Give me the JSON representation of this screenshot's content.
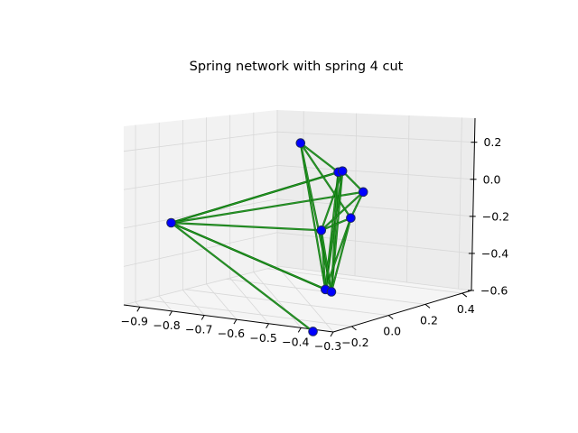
{
  "chart_data": {
    "type": "scatter",
    "projection": "3d",
    "title": "Spring network with spring 4 cut",
    "xlabel": "",
    "ylabel": "",
    "zlabel": "",
    "xlim": [
      -0.95,
      -0.3
    ],
    "ylim": [
      -0.3,
      0.45
    ],
    "zlim": [
      -0.6,
      0.33
    ],
    "xticks": [
      "−0.9",
      "−0.8",
      "−0.7",
      "−0.6",
      "−0.5",
      "−0.4",
      "−0.3"
    ],
    "yticks": [
      "−0.2",
      "0.0",
      "0.2",
      "0.4"
    ],
    "zticks": [
      "−0.6",
      "−0.4",
      "−0.2",
      "0.0",
      "0.2"
    ],
    "grid": true,
    "nodes": [
      {
        "id": "n1",
        "x": -0.86,
        "y": -0.2,
        "z": -0.2
      },
      {
        "id": "n2",
        "x": -0.55,
        "y": 0.3,
        "z": -0.12
      },
      {
        "id": "n3",
        "x": -0.43,
        "y": -0.25,
        "z": 0.3
      },
      {
        "id": "n4",
        "x": -0.37,
        "y": -0.15,
        "z": 0.14
      },
      {
        "id": "n5",
        "x": -0.34,
        "y": -0.18,
        "z": 0.16
      },
      {
        "id": "n6",
        "x": -0.36,
        "y": -0.1,
        "z": -0.1
      },
      {
        "id": "n7",
        "x": -0.48,
        "y": -0.05,
        "z": -0.2
      },
      {
        "id": "n8",
        "x": -0.45,
        "y": -0.08,
        "z": -0.48
      },
      {
        "id": "n9",
        "x": -0.42,
        "y": -0.1,
        "z": -0.48
      },
      {
        "id": "n10",
        "x": -0.42,
        "y": -0.2,
        "z": -0.65
      }
    ],
    "edges": [
      [
        "n1",
        "n4"
      ],
      [
        "n1",
        "n5"
      ],
      [
        "n1",
        "n2"
      ],
      [
        "n1",
        "n7"
      ],
      [
        "n1",
        "n8"
      ],
      [
        "n1",
        "n9"
      ],
      [
        "n1",
        "n10"
      ],
      [
        "n3",
        "n4"
      ],
      [
        "n3",
        "n6"
      ],
      [
        "n3",
        "n8"
      ],
      [
        "n3",
        "n9"
      ],
      [
        "n5",
        "n7"
      ],
      [
        "n5",
        "n8"
      ],
      [
        "n5",
        "n9"
      ],
      [
        "n5",
        "n2"
      ],
      [
        "n4",
        "n8"
      ],
      [
        "n4",
        "n9"
      ],
      [
        "n2",
        "n6"
      ],
      [
        "n2",
        "n7"
      ],
      [
        "n7",
        "n6"
      ],
      [
        "n7",
        "n8"
      ],
      [
        "n7",
        "n9"
      ],
      [
        "n6",
        "n8"
      ],
      [
        "n6",
        "n9"
      ]
    ],
    "colors": {
      "node_fill": "#0000ff",
      "node_edge": "#1f2a5e",
      "edge_primary": "#2ca02c",
      "edge_secondary": "#006400",
      "pane_left": "#f2f2f2",
      "pane_right": "#ececec",
      "pane_floor": "#f5f5f5",
      "grid": "#d8d8d8"
    }
  }
}
